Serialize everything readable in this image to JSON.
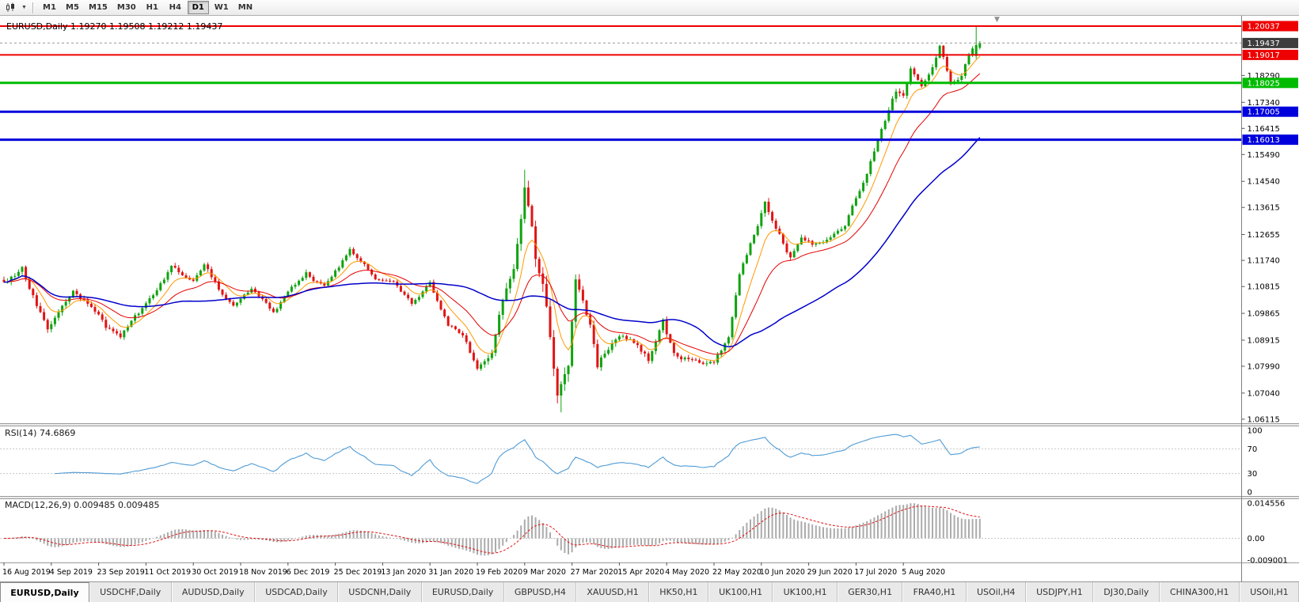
{
  "toolbar": {
    "timeframes": [
      "M1",
      "M5",
      "M15",
      "M30",
      "H1",
      "H4",
      "D1",
      "W1",
      "MN"
    ],
    "active_timeframe": "D1"
  },
  "chart": {
    "title": "EURUSD,Daily 1.19270 1.19508 1.19212 1.19437",
    "symbol": "EURUSD",
    "period": "Daily",
    "ohlc": {
      "open": "1.19270",
      "high": "1.19508",
      "low": "1.19212",
      "close": "1.19437"
    }
  },
  "indicators": {
    "rsi": {
      "display": "RSI(14) 74.6869"
    },
    "macd": {
      "display": "MACD(12,26,9) 0.009485 0.009485"
    }
  },
  "tabs": [
    {
      "label": "EURUSD,Daily",
      "active": true
    },
    {
      "label": "USDCHF,Daily"
    },
    {
      "label": "AUDUSD,Daily"
    },
    {
      "label": "USDCAD,Daily"
    },
    {
      "label": "USDCNH,Daily"
    },
    {
      "label": "EURUSD,Daily"
    },
    {
      "label": "GBPUSD,H4"
    },
    {
      "label": "XAUUSD,H1"
    },
    {
      "label": "HK50,H1"
    },
    {
      "label": "UK100,H1"
    },
    {
      "label": "UK100,H1"
    },
    {
      "label": "GER30,H1"
    },
    {
      "label": "FRA40,H1"
    },
    {
      "label": "USOil,H4"
    },
    {
      "label": "USDJPY,H1"
    },
    {
      "label": "DJ30,Daily"
    },
    {
      "label": "CHINA300,H1"
    },
    {
      "label": "USOil,H1"
    }
  ],
  "chart_data": {
    "type": "candlestick",
    "symbol": "EURUSD",
    "timeframe": "Daily",
    "x_labels": [
      "16 Aug 2019",
      "4 Sep 2019",
      "23 Sep 2019",
      "11 Oct 2019",
      "30 Oct 2019",
      "18 Nov 2019",
      "6 Dec 2019",
      "25 Dec 2019",
      "13 Jan 2020",
      "31 Jan 2020",
      "19 Feb 2020",
      "9 Mar 2020",
      "27 Mar 2020",
      "15 Apr 2020",
      "4 May 2020",
      "22 May 2020",
      "10 Jun 2020",
      "29 Jun 2020",
      "17 Jul 2020",
      "5 Aug 2020"
    ],
    "labels_every": 13,
    "y_axis": {
      "max": 1.20401,
      "min": 1.05973,
      "ticks": [
        "1.18290",
        "1.17340",
        "1.16415",
        "1.15490",
        "1.14540",
        "1.13615",
        "1.12655",
        "1.11740",
        "1.10815",
        "1.09865",
        "1.08915",
        "1.07990",
        "1.07040",
        "1.06115"
      ]
    },
    "hlines": [
      {
        "price": 1.20037,
        "label": "1.20037",
        "color": "#ee0000",
        "width": 2
      },
      {
        "price": 1.19017,
        "label": "1.19017",
        "color": "#ee0000",
        "width": 2
      },
      {
        "price": 1.18025,
        "label": "1.18025",
        "color": "#00bb00",
        "width": 3
      },
      {
        "price": 1.17005,
        "label": "1.17005",
        "color": "#0000dd",
        "width": 3
      },
      {
        "price": 1.16013,
        "label": "1.16013",
        "color": "#0000dd",
        "width": 3
      }
    ],
    "current_price": {
      "value": 1.19437,
      "label": "1.19437",
      "tag_bg": "#3d3d3d"
    },
    "candle_colors": {
      "up": "#0fa30f",
      "down": "#e01414"
    },
    "bar_count": 269,
    "price_anchors": [
      [
        0,
        1.109,
        0.0022
      ],
      [
        5,
        1.1142,
        0.0022
      ],
      [
        12,
        1.0928,
        0.002
      ],
      [
        19,
        1.1068,
        0.0019
      ],
      [
        24,
        1.1015,
        0.0017
      ],
      [
        28,
        1.094,
        0.0017
      ],
      [
        32,
        1.0895,
        0.0017
      ],
      [
        36,
        1.0975,
        0.0016
      ],
      [
        40,
        1.103,
        0.0016
      ],
      [
        46,
        1.1148,
        0.0016
      ],
      [
        52,
        1.1105,
        0.0015
      ],
      [
        55,
        1.1158,
        0.0015
      ],
      [
        60,
        1.105,
        0.0014
      ],
      [
        63,
        1.1008,
        0.0014
      ],
      [
        68,
        1.107,
        0.0013
      ],
      [
        74,
        1.099,
        0.0013
      ],
      [
        78,
        1.1058,
        0.0014
      ],
      [
        83,
        1.1128,
        0.0014
      ],
      [
        88,
        1.1078,
        0.0013
      ],
      [
        95,
        1.1208,
        0.0013
      ],
      [
        99,
        1.116,
        0.0013
      ],
      [
        102,
        1.1108,
        0.0013
      ],
      [
        107,
        1.109,
        0.0012
      ],
      [
        112,
        1.1022,
        0.0012
      ],
      [
        117,
        1.1092,
        0.0013
      ],
      [
        122,
        1.0944,
        0.0013
      ],
      [
        126,
        1.0912,
        0.0013
      ],
      [
        130,
        1.079,
        0.0015
      ],
      [
        134,
        1.0855,
        0.0022
      ],
      [
        137,
        1.103,
        0.003
      ],
      [
        140,
        1.1135,
        0.0038
      ],
      [
        143,
        1.1442,
        0.0045
      ],
      [
        146,
        1.118,
        0.005
      ],
      [
        148,
        1.1108,
        0.005
      ],
      [
        150,
        1.092,
        0.0052
      ],
      [
        152,
        1.07,
        0.005
      ],
      [
        153,
        1.073,
        0.0048
      ],
      [
        155,
        1.081,
        0.0046
      ],
      [
        157,
        1.1098,
        0.0042
      ],
      [
        159,
        1.1035,
        0.0036
      ],
      [
        161,
        1.095,
        0.003
      ],
      [
        163,
        1.08,
        0.0026
      ],
      [
        166,
        1.0868,
        0.0023
      ],
      [
        170,
        1.0905,
        0.002
      ],
      [
        173,
        1.0878,
        0.0019
      ],
      [
        177,
        1.0822,
        0.0019
      ],
      [
        181,
        1.0952,
        0.0021
      ],
      [
        184,
        1.0842,
        0.0018
      ],
      [
        186,
        1.0832,
        0.0017
      ],
      [
        191,
        1.0808,
        0.0016
      ],
      [
        195,
        1.0818,
        0.0015
      ],
      [
        199,
        1.0898,
        0.0015
      ],
      [
        202,
        1.1132,
        0.0017
      ],
      [
        205,
        1.1232,
        0.0018
      ],
      [
        209,
        1.1378,
        0.0022
      ],
      [
        212,
        1.1298,
        0.002
      ],
      [
        216,
        1.1182,
        0.0018
      ],
      [
        219,
        1.1258,
        0.0016
      ],
      [
        222,
        1.1232,
        0.0016
      ],
      [
        226,
        1.1248,
        0.0015
      ],
      [
        231,
        1.1298,
        0.0015
      ],
      [
        234,
        1.1398,
        0.0016
      ],
      [
        236,
        1.1448,
        0.0017
      ],
      [
        240,
        1.1592,
        0.0019
      ],
      [
        243,
        1.1712,
        0.002
      ],
      [
        245,
        1.1778,
        0.0021
      ],
      [
        247,
        1.176,
        0.0019
      ],
      [
        249,
        1.1858,
        0.0019
      ],
      [
        252,
        1.1782,
        0.0017
      ],
      [
        255,
        1.185,
        0.0017
      ],
      [
        257,
        1.1928,
        0.0018
      ],
      [
        260,
        1.1798,
        0.0017
      ],
      [
        263,
        1.1832,
        0.0015
      ],
      [
        265,
        1.1902,
        0.0015
      ],
      [
        267,
        1.1937,
        0.0015
      ],
      [
        268,
        1.1944,
        0.0008
      ]
    ],
    "bar_overrides": {
      "143": {
        "h": 1.1495
      },
      "153": {
        "l": 1.0636
      },
      "267": {
        "o": 1.1898,
        "h": 1.20037,
        "l": 1.1887,
        "c": 1.1937
      },
      "268": {
        "o": 1.1927,
        "h": 1.19508,
        "l": 1.19212,
        "c": 1.19437
      }
    },
    "moving_averages": [
      {
        "name": "ma-fast-orange",
        "period": 8,
        "method": "ema",
        "color": "#ff9900",
        "width": 1
      },
      {
        "name": "ma-mid-red",
        "period": 20,
        "method": "ema",
        "color": "#e60000",
        "width": 1
      },
      {
        "name": "ma-slow-blue",
        "period": 50,
        "method": "sma",
        "color": "#0000cc",
        "width": 1.5
      }
    ],
    "rsi": {
      "period": 14,
      "value": 74.6869,
      "color": "#4f9bd5",
      "levels": [
        70,
        30
      ],
      "axis_labels": [
        100,
        70,
        30,
        0
      ],
      "range": [
        0,
        100
      ]
    },
    "macd": {
      "fast": 12,
      "slow": 26,
      "signal": 9,
      "value": 0.009485,
      "signal_value": 0.009485,
      "hist_color": "#ababab",
      "signal_color": "#e01414",
      "scale_max": 0.014556,
      "scale_min": -0.009001,
      "axis_labels": [
        "0.014556",
        "0.00",
        "-0.009001"
      ]
    }
  }
}
